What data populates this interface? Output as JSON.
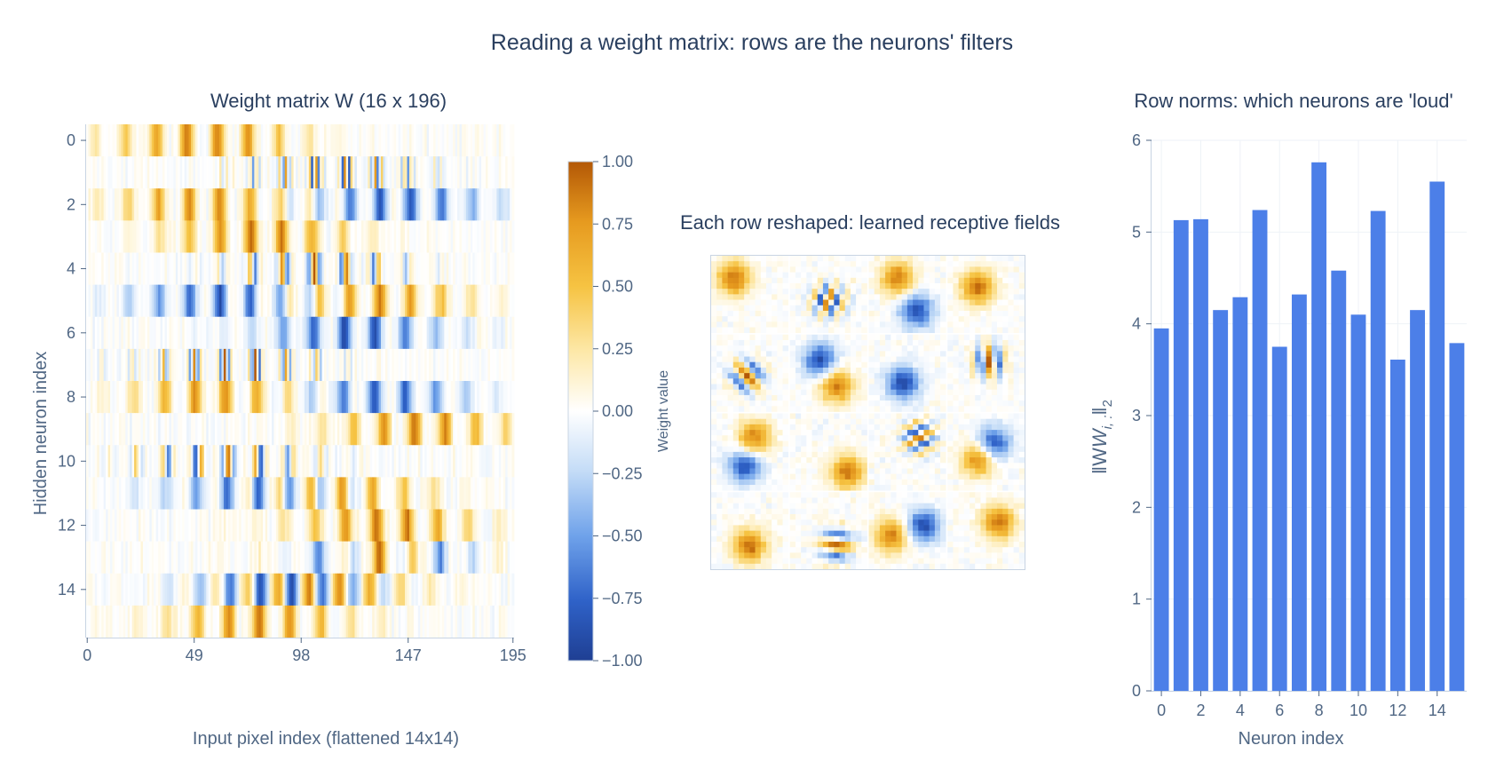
{
  "title": "Reading a weight matrix: rows are the neurons' filters",
  "colors": {
    "bar": "#4c7fe8",
    "colorscale_low": "#1f3f93",
    "colorscale_mid": "#ffffff",
    "colorscale_high": "#b35806"
  },
  "chart_data": [
    {
      "type": "heatmap",
      "title": "Weight matrix W (16 x 196)",
      "xlabel": "Input pixel index (flattened 14x14)",
      "ylabel": "Hidden neuron index",
      "x_ticks": [
        "0",
        "49",
        "98",
        "147",
        "195"
      ],
      "y_ticks": [
        "0",
        "2",
        "4",
        "6",
        "8",
        "10",
        "12",
        "14"
      ],
      "rows": 16,
      "cols": 196,
      "zlim": [
        -1,
        1
      ],
      "colorbar": {
        "title": "Weight value",
        "ticks": [
          "1.00",
          "0.75",
          "0.50",
          "0.25",
          "0.00",
          "−0.25",
          "−0.50",
          "−0.75",
          "−1.00"
        ]
      }
    },
    {
      "type": "heatmap",
      "title": "Each row reshaped: learned receptive fields",
      "grid": [
        4,
        4
      ],
      "tile_size": [
        14,
        14
      ],
      "zlim": [
        -1,
        1
      ]
    },
    {
      "type": "bar",
      "title": "Row norms: which neurons are 'loud'",
      "xlabel": "Neuron index",
      "ylabel": "‖W",
      "ylabel_sub": "i, :",
      "ylabel_end": "‖",
      "ylabel_norm_sub": "2",
      "categories": [
        0,
        1,
        2,
        3,
        4,
        5,
        6,
        7,
        8,
        9,
        10,
        11,
        12,
        13,
        14,
        15
      ],
      "x_ticks": [
        "0",
        "2",
        "4",
        "6",
        "8",
        "10",
        "12",
        "14"
      ],
      "y_ticks": [
        "0",
        "1",
        "2",
        "3",
        "4",
        "5",
        "6"
      ],
      "values": [
        3.95,
        5.13,
        5.14,
        4.15,
        4.29,
        5.24,
        3.75,
        4.32,
        5.76,
        4.58,
        4.1,
        5.23,
        3.61,
        4.15,
        5.55,
        3.79
      ],
      "ylim": [
        0,
        6
      ],
      "grid": true
    }
  ]
}
